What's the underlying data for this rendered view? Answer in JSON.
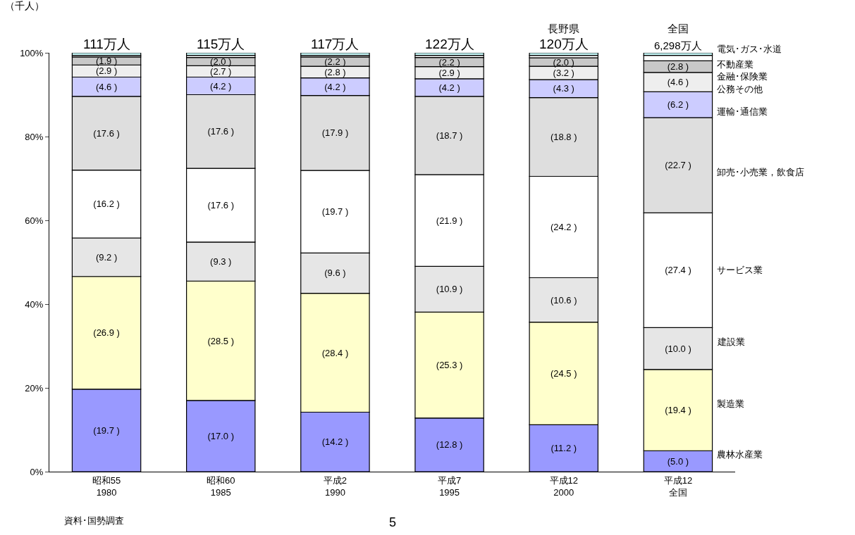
{
  "chart_data": {
    "type": "bar",
    "stacked": true,
    "categories": [
      "昭和55\n1980",
      "昭和60\n1985",
      "平成2\n1990",
      "平成7\n1995",
      "平成12\n2000",
      "平成12\n全国"
    ],
    "ylabel": "（千人）",
    "ylim": [
      0,
      100
    ],
    "yticks": [
      {
        "value": 0,
        "label": "0%"
      },
      {
        "value": 20,
        "label": "20%"
      },
      {
        "value": 40,
        "label": "40%"
      },
      {
        "value": 60,
        "label": "60%"
      },
      {
        "value": 80,
        "label": "80%"
      },
      {
        "value": 100,
        "label": "100%"
      }
    ],
    "series": [
      {
        "name": "農林水産業",
        "color": "#9999ff",
        "values": [
          19.7,
          17.0,
          14.2,
          12.8,
          11.2,
          5.0
        ],
        "value_labels": [
          "(19.7 )",
          "(17.0 )",
          "(14.2 )",
          "(12.8 )",
          "(11.2 )",
          "(5.0 )"
        ]
      },
      {
        "name": "製造業",
        "color": "#ffffcc",
        "values": [
          26.9,
          28.5,
          28.4,
          25.3,
          24.5,
          19.4
        ],
        "value_labels": [
          "(26.9 )",
          "(28.5 )",
          "(28.4 )",
          "(25.3 )",
          "(24.5 )",
          "(19.4 )"
        ]
      },
      {
        "name": "建設業",
        "color": "#e6e6e6",
        "values": [
          9.2,
          9.3,
          9.6,
          10.9,
          10.6,
          10.0
        ],
        "value_labels": [
          "(9.2 )",
          "(9.3 )",
          "(9.6 )",
          "(10.9 )",
          "(10.6 )",
          "(10.0 )"
        ]
      },
      {
        "name": "サービス業",
        "color": "#ffffff",
        "values": [
          16.2,
          17.6,
          19.7,
          21.9,
          24.2,
          27.4
        ],
        "value_labels": [
          "(16.2 )",
          "(17.6 )",
          "(19.7 )",
          "(21.9 )",
          "(24.2 )",
          "(27.4 )"
        ]
      },
      {
        "name": "卸売･小売業，飲食店",
        "color": "#dedede",
        "values": [
          17.6,
          17.6,
          17.9,
          18.7,
          18.8,
          22.7
        ],
        "value_labels": [
          "(17.6 )",
          "(17.6 )",
          "(17.9 )",
          "(18.7 )",
          "(18.8 )",
          "(22.7 )"
        ]
      },
      {
        "name": "運輸･通信業",
        "color": "#ccccff",
        "values": [
          4.6,
          4.2,
          4.2,
          4.2,
          4.3,
          6.2
        ],
        "value_labels": [
          "(4.6 )",
          "(4.2 )",
          "(4.2 )",
          "(4.2 )",
          "(4.3 )",
          "(6.2 )"
        ]
      },
      {
        "name": "公務その他",
        "color": "#eeeeee",
        "values": [
          2.9,
          2.7,
          2.8,
          2.9,
          3.2,
          4.6
        ],
        "value_labels": [
          "(2.9 )",
          "(2.7 )",
          "(2.8 )",
          "(2.9 )",
          "(3.2 )",
          "(4.6 )"
        ]
      },
      {
        "name": "金融･保険業",
        "color": "#c8c8c8",
        "values": [
          1.9,
          2.0,
          2.2,
          2.2,
          2.0,
          2.8
        ],
        "value_labels": [
          "(1.9 )",
          "(2.0 )",
          "(2.2 )",
          "(2.2 )",
          "(2.0 )",
          "(2.8 )"
        ]
      },
      {
        "name": "不動産業",
        "color": "#ffffff",
        "values": [
          0.4,
          0.5,
          0.4,
          0.5,
          0.6,
          1.3
        ],
        "value_labels": [
          null,
          null,
          null,
          null,
          null,
          null
        ]
      },
      {
        "name": "電気･ガス･水道",
        "color": "#ccffff",
        "values": [
          0.6,
          0.6,
          0.6,
          0.6,
          0.6,
          0.6
        ],
        "value_labels": [
          null,
          null,
          null,
          null,
          null,
          null
        ]
      }
    ],
    "annotations": [
      "111万人",
      "115万人",
      "117万人",
      "122万人",
      "120万人",
      "6,298万人",
      "長野県",
      "全国",
      "資料･国勢調査",
      "5"
    ],
    "legend": false
  }
}
